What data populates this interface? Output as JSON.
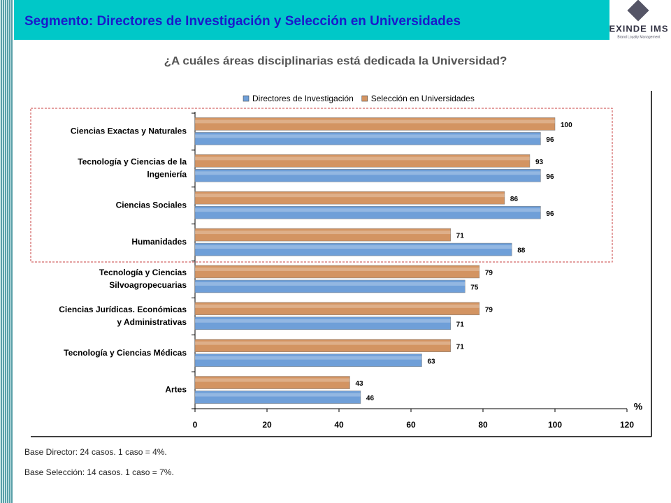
{
  "header": {
    "title": "Segmento: Directores de Investigación y Selección en Universidades",
    "logo": "EXINDE IMS",
    "logo_tagline": "Brand Loyalty Management"
  },
  "chart_data": {
    "type": "bar",
    "orientation": "horizontal",
    "title": "¿A cuáles áreas disciplinarias está dedicada la Universidad?",
    "categories": [
      "Ciencias Exactas y Naturales",
      "Tecnología y Ciencias de la\nIngeniería",
      "Ciencias Sociales",
      "Humanidades",
      "Tecnología y Ciencias\nSilvoagropecuarias",
      "Ciencias Jurídicas. Económicas\ny Administrativas",
      "Tecnología y Ciencias Médicas",
      "Artes"
    ],
    "series": [
      {
        "name": "Directores de Investigación",
        "color": "#6f9fd8",
        "values": [
          96,
          96,
          96,
          88,
          75,
          71,
          63,
          46
        ]
      },
      {
        "name": "Selección en Universidades",
        "color": "#d39462",
        "values": [
          100,
          93,
          86,
          71,
          79,
          79,
          71,
          43
        ]
      }
    ],
    "xlim": [
      0,
      120
    ],
    "xticks": [
      0,
      20,
      40,
      60,
      80,
      100,
      120
    ],
    "xlabel": "%",
    "legend": "top"
  },
  "footnotes": [
    "Base Director: 24 casos. 1 caso = 4%.",
    "Base Selección: 14 casos. 1 caso = 7%."
  ]
}
